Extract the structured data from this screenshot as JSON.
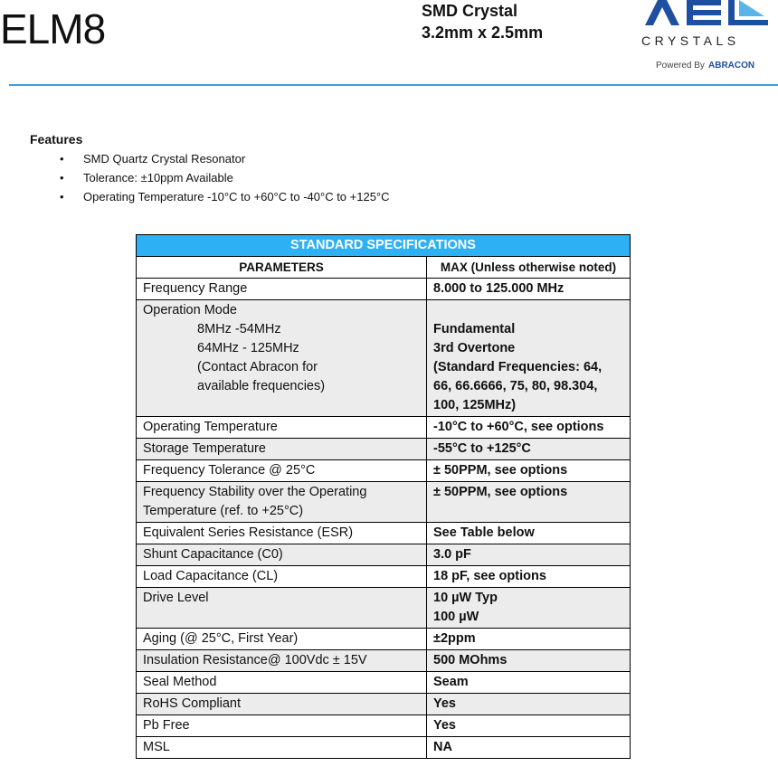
{
  "header": {
    "title": "ELM8",
    "subtitle_line1": "SMD Crystal",
    "subtitle_line2": "3.2mm x 2.5mm",
    "logo": {
      "brand": "AEL",
      "line2": "CRYSTALS",
      "powered": "Powered By",
      "powered_brand": "ABRACON",
      "color": "#1f4fa0",
      "accent": "#3aa0e0"
    }
  },
  "features": {
    "heading": "Features",
    "items": [
      "SMD Quartz Crystal Resonator",
      "Tolerance: ±10ppm Available",
      "Operating Temperature -10°C to +60°C to -40°C to +125°C"
    ]
  },
  "table": {
    "title": "STANDARD SPECIFICATIONS",
    "col1": "PARAMETERS",
    "col2": "MAX (Unless otherwise noted)",
    "op_mode": {
      "label": "Operation Mode",
      "sub": [
        "8MHz -54MHz",
        "64MHz - 125MHz",
        "(Contact Abracon for",
        "available frequencies)"
      ],
      "values": [
        "Fundamental",
        "3rd Overtone",
        "(Standard Frequencies: 64, 66, 66.6666, 75, 80, 98.304, 100, 125MHz)"
      ]
    },
    "rows": [
      {
        "p": "Frequency Range",
        "v": "8.000 to 125.000 MHz"
      },
      {
        "p": "Operating Temperature",
        "v": "-10°C to +60°C, see options"
      },
      {
        "p": "Storage Temperature",
        "v": "-55°C to +125°C"
      },
      {
        "p": "Frequency Tolerance @ 25°C",
        "v": "± 50PPM, see options"
      },
      {
        "p": "Frequency Stability over the Operating Temperature (ref. to +25°C)",
        "v": "± 50PPM, see options"
      },
      {
        "p": "Equivalent Series Resistance (ESR)",
        "v": "See Table below"
      },
      {
        "p": "Shunt Capacitance (C0)",
        "v": "3.0 pF"
      },
      {
        "p": "Load Capacitance (CL)",
        "v": "18 pF, see options"
      },
      {
        "p": "Drive Level",
        "v": "10 µW Typ",
        "v2": "100  µW"
      },
      {
        "p": "Aging (@ 25°C, First Year)",
        "v": "±2ppm"
      },
      {
        "p": "Insulation Resistance@ 100Vdc ± 15V",
        "v": "500 MOhms"
      },
      {
        "p": "Seal Method",
        "v": "Seam"
      },
      {
        "p": "RoHS Compliant",
        "v": "Yes"
      },
      {
        "p": "Pb Free",
        "v": "Yes"
      },
      {
        "p": "MSL",
        "v": "NA"
      }
    ]
  }
}
